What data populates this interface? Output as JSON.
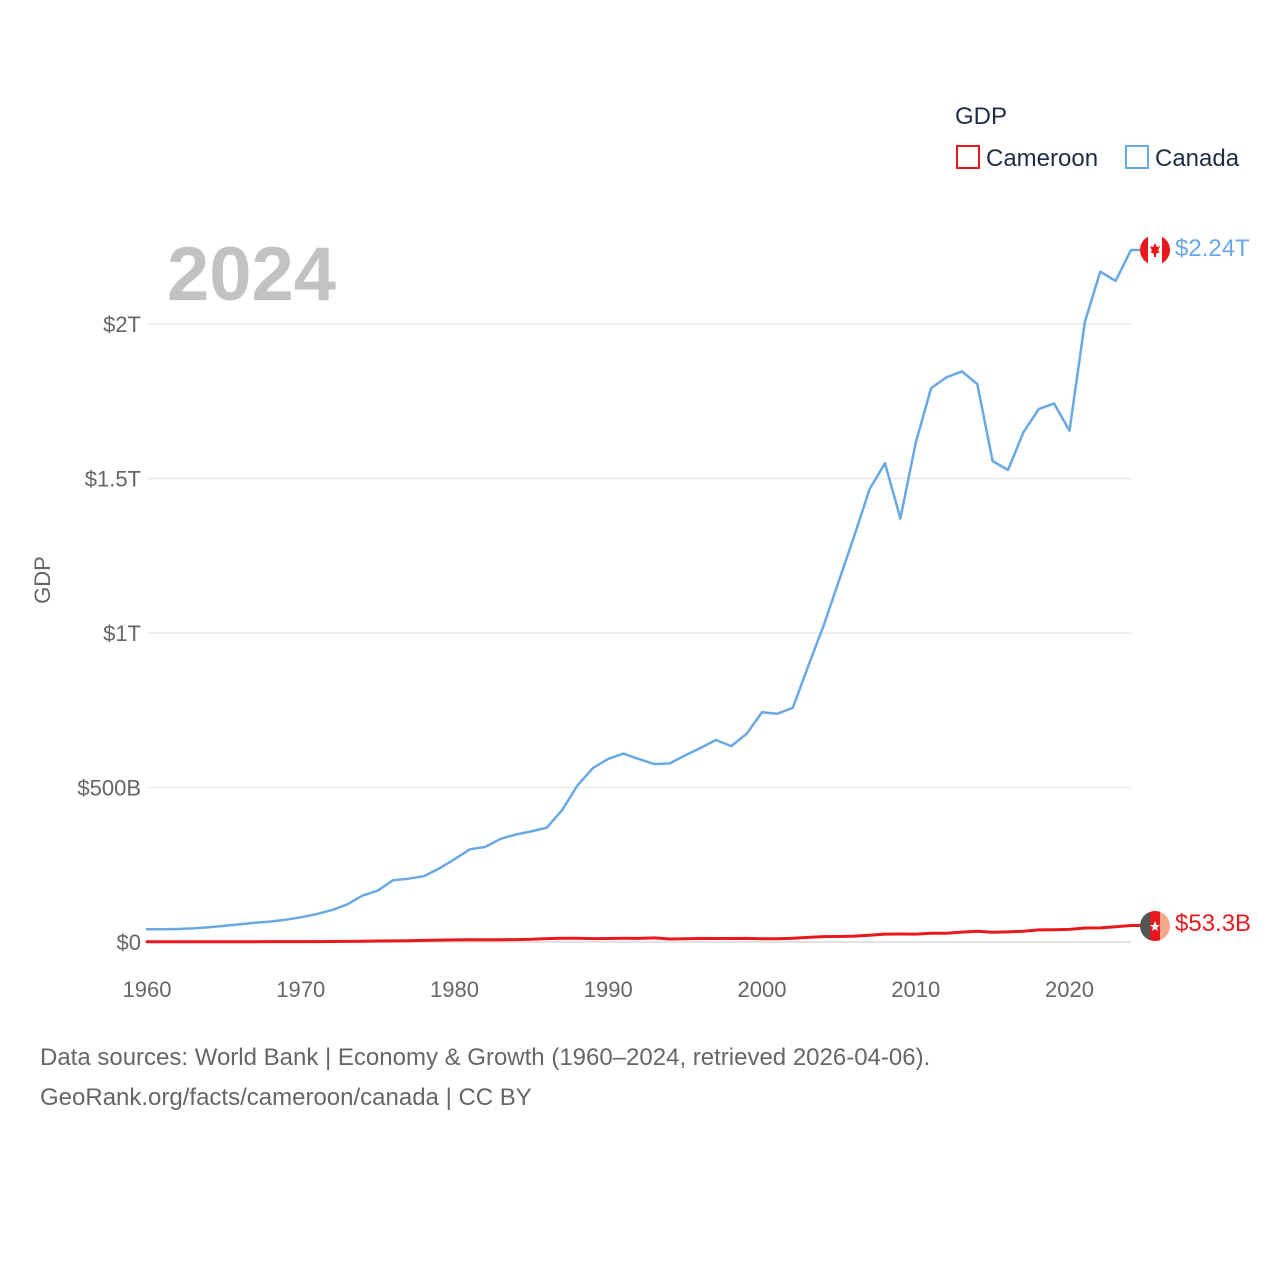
{
  "chart_data": {
    "type": "line",
    "title": "GDP",
    "ylabel": "GDP",
    "xlabel": "",
    "year_label": "2024",
    "xlim": [
      1960,
      2024.5
    ],
    "ylim": [
      0,
      2300
    ],
    "unit_note": "values in billions of USD",
    "x_ticks": [
      1960,
      1970,
      1980,
      1990,
      2000,
      2010,
      2020
    ],
    "x_tick_labels": [
      "1960",
      "1970",
      "1980",
      "1990",
      "2000",
      "2010",
      "2020"
    ],
    "y_ticks": [
      0,
      500,
      1000,
      1500,
      2000
    ],
    "y_tick_labels": [
      "$0",
      "$500B",
      "$1T",
      "$1.5T",
      "$2T"
    ],
    "legend": {
      "title": "GDP",
      "position": "top-right"
    },
    "x": [
      1960,
      1961,
      1962,
      1963,
      1964,
      1965,
      1966,
      1967,
      1968,
      1969,
      1970,
      1971,
      1972,
      1973,
      1974,
      1975,
      1976,
      1977,
      1978,
      1979,
      1980,
      1981,
      1982,
      1983,
      1984,
      1985,
      1986,
      1987,
      1988,
      1989,
      1990,
      1991,
      1992,
      1993,
      1994,
      1995,
      1996,
      1997,
      1998,
      1999,
      2000,
      2001,
      2002,
      2003,
      2004,
      2005,
      2006,
      2007,
      2008,
      2009,
      2010,
      2011,
      2012,
      2013,
      2014,
      2015,
      2016,
      2017,
      2018,
      2019,
      2020,
      2021,
      2022,
      2023,
      2024
    ],
    "series": [
      {
        "name": "Cameroon",
        "color": "#e8191d",
        "end_label": "$53.3B",
        "flag_icon": "cameroon-flag-icon",
        "values": [
          0.6,
          0.7,
          0.7,
          0.8,
          0.8,
          0.9,
          1.0,
          1.1,
          1.2,
          1.3,
          1.2,
          1.4,
          1.6,
          2.0,
          2.5,
          3.1,
          3.4,
          4.1,
          5.1,
          6.2,
          6.7,
          7.4,
          7.1,
          7.4,
          7.9,
          8.6,
          11.1,
          12.4,
          12.0,
          11.1,
          11.2,
          11.9,
          11.5,
          13.4,
          9.6,
          10.3,
          11.5,
          11.2,
          11.4,
          11.8,
          10.5,
          10.7,
          12.1,
          15.0,
          17.4,
          17.9,
          19.2,
          21.9,
          25.7,
          25.8,
          25.6,
          28.6,
          28.6,
          32.0,
          35.1,
          31.3,
          32.7,
          35.1,
          39.1,
          39.6,
          40.8,
          45.3,
          45.6,
          49.3,
          53.3
        ]
      },
      {
        "name": "Canada",
        "color": "#6aa8e3",
        "end_label": "$2.24T",
        "flag_icon": "canada-flag-icon",
        "values": [
          41,
          41,
          42,
          44,
          48,
          52,
          57,
          62,
          66,
          72,
          80,
          90,
          103,
          121,
          150,
          166,
          200,
          205,
          213,
          238,
          268,
          300,
          308,
          334,
          348,
          358,
          370,
          427,
          507,
          563,
          593,
          610,
          592,
          576,
          578,
          604,
          628,
          654,
          634,
          674,
          744,
          739,
          758,
          892,
          1023,
          1169,
          1315,
          1466,
          1550,
          1371,
          1617,
          1793,
          1828,
          1847,
          1806,
          1557,
          1528,
          1650,
          1725,
          1743,
          1655,
          2008,
          2170,
          2140,
          2240
        ]
      }
    ]
  },
  "footer": {
    "line1": "Data sources: World Bank | Economy & Growth (1960–2024, retrieved 2026-04-06).",
    "line2": "GeoRank.org/facts/cameroon/canada | CC BY"
  }
}
